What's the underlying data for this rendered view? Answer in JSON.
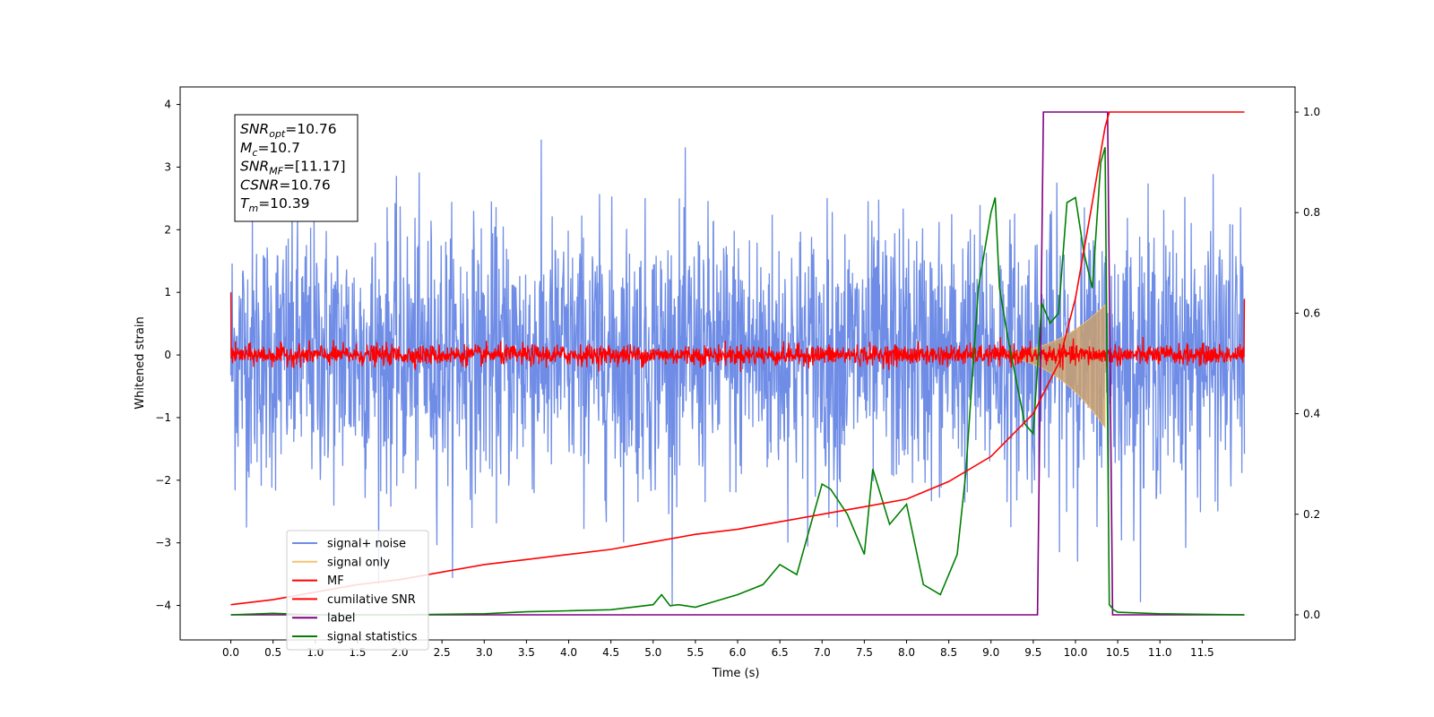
{
  "chart_data": {
    "type": "line",
    "xlabel": "Time (s)",
    "ylabel": "Whitened strain",
    "x_ticks": [
      0.0,
      0.5,
      1.0,
      1.5,
      2.0,
      2.5,
      3.0,
      3.5,
      4.0,
      4.5,
      5.0,
      5.5,
      6.0,
      6.5,
      7.0,
      7.5,
      8.0,
      8.5,
      9.0,
      9.5,
      10.0,
      10.5,
      11.0,
      11.5
    ],
    "x_tick_labels": [
      "0.0",
      "0.5",
      "1.0",
      "1.5",
      "2.0",
      "2.5",
      "3.0",
      "3.5",
      "4.0",
      "4.5",
      "5.0",
      "5.5",
      "6.0",
      "6.5",
      "7.0",
      "7.5",
      "8.0",
      "8.5",
      "9.0",
      "9.5",
      "10.0",
      "10.5",
      "11.0",
      "11.5"
    ],
    "xlim": [
      -0.6,
      12.6
    ],
    "ylim_left": [
      -4.55,
      4.28
    ],
    "y_left_ticks": [
      -4,
      -3,
      -2,
      -1,
      0,
      1,
      2,
      3,
      4
    ],
    "y_left_tick_labels": [
      "−4",
      "−3",
      "−2",
      "−1",
      "0",
      "1",
      "2",
      "3",
      "4"
    ],
    "ylim_right": [
      -0.05,
      1.05
    ],
    "y_right_ticks": [
      0.0,
      0.2,
      0.4,
      0.6,
      0.8,
      1.0
    ],
    "y_right_tick_labels": [
      "0.0",
      "0.2",
      "0.4",
      "0.6",
      "0.8",
      "1.0"
    ],
    "grid": false,
    "legend_placement": "lower-left",
    "series": [
      {
        "name": "signal+ noise",
        "axis": "left",
        "color": "#6f8de6",
        "kind": "noise",
        "amplitude_sigma": 1.0,
        "x_range": [
          0.0,
          12.0
        ]
      },
      {
        "name": "signal only",
        "axis": "left",
        "color": "#f5c46e",
        "fill": "#c9a070",
        "kind": "chirp",
        "x_range": [
          8.8,
          10.35
        ],
        "peak_amplitude": 0.8
      },
      {
        "name": "MF",
        "axis": "left",
        "color": "#ff0000",
        "kind": "noise",
        "amplitude_sigma": 0.08,
        "x_range": [
          0.0,
          12.0
        ],
        "edge_values": [
          1.0,
          0.9
        ]
      },
      {
        "name": "cumilative SNR",
        "axis": "right",
        "color": "#ff0000",
        "x": [
          0.0,
          0.5,
          1.0,
          1.5,
          2.0,
          2.5,
          3.0,
          3.5,
          4.0,
          4.5,
          5.0,
          5.5,
          6.0,
          6.5,
          7.0,
          7.5,
          8.0,
          8.5,
          9.0,
          9.5,
          9.8,
          10.0,
          10.2,
          10.3,
          10.35,
          10.4,
          12.0
        ],
        "values": [
          0.02,
          0.03,
          0.045,
          0.06,
          0.07,
          0.085,
          0.1,
          0.11,
          0.12,
          0.13,
          0.145,
          0.16,
          0.17,
          0.185,
          0.2,
          0.215,
          0.23,
          0.265,
          0.315,
          0.4,
          0.5,
          0.63,
          0.82,
          0.92,
          0.97,
          1.0,
          1.0
        ]
      },
      {
        "name": "label",
        "axis": "right",
        "color": "#800080",
        "x": [
          0.0,
          9.55,
          9.62,
          10.38,
          10.44,
          12.0
        ],
        "values": [
          0.0,
          0.0,
          1.0,
          1.0,
          0.0,
          0.0
        ]
      },
      {
        "name": "signal statistics",
        "axis": "right",
        "color": "#008000",
        "x": [
          0.0,
          0.5,
          1.0,
          2.0,
          3.0,
          3.5,
          4.0,
          4.5,
          5.0,
          5.1,
          5.2,
          5.3,
          5.5,
          5.7,
          6.0,
          6.3,
          6.5,
          6.7,
          7.0,
          7.1,
          7.3,
          7.5,
          7.6,
          7.8,
          8.0,
          8.2,
          8.4,
          8.5,
          8.6,
          8.7,
          8.85,
          9.0,
          9.05,
          9.1,
          9.2,
          9.4,
          9.5,
          9.6,
          9.7,
          9.8,
          9.9,
          10.0,
          10.1,
          10.2,
          10.3,
          10.35,
          10.4,
          10.45,
          10.5,
          11.0,
          11.5,
          12.0
        ],
        "values": [
          0.0,
          0.003,
          0.0,
          0.0,
          0.002,
          0.006,
          0.008,
          0.01,
          0.02,
          0.04,
          0.018,
          0.02,
          0.015,
          0.025,
          0.04,
          0.06,
          0.1,
          0.08,
          0.26,
          0.25,
          0.2,
          0.12,
          0.29,
          0.18,
          0.22,
          0.06,
          0.04,
          0.08,
          0.12,
          0.28,
          0.65,
          0.8,
          0.83,
          0.65,
          0.55,
          0.38,
          0.36,
          0.62,
          0.58,
          0.6,
          0.82,
          0.83,
          0.72,
          0.65,
          0.9,
          0.93,
          0.02,
          0.01,
          0.005,
          0.002,
          0.001,
          0.0
        ]
      }
    ],
    "annotation_lines": [
      {
        "sym": "SNR",
        "sub": "opt",
        "value": "=10.76"
      },
      {
        "sym": "M",
        "sub": "c",
        "value": "=10.7"
      },
      {
        "sym": "SNR",
        "sub": "MF",
        "value": "=[11.17]"
      },
      {
        "sym": "CSNR",
        "sub": "",
        "value": "=10.76"
      },
      {
        "sym": "T",
        "sub": "m",
        "value": "=10.39"
      }
    ]
  }
}
